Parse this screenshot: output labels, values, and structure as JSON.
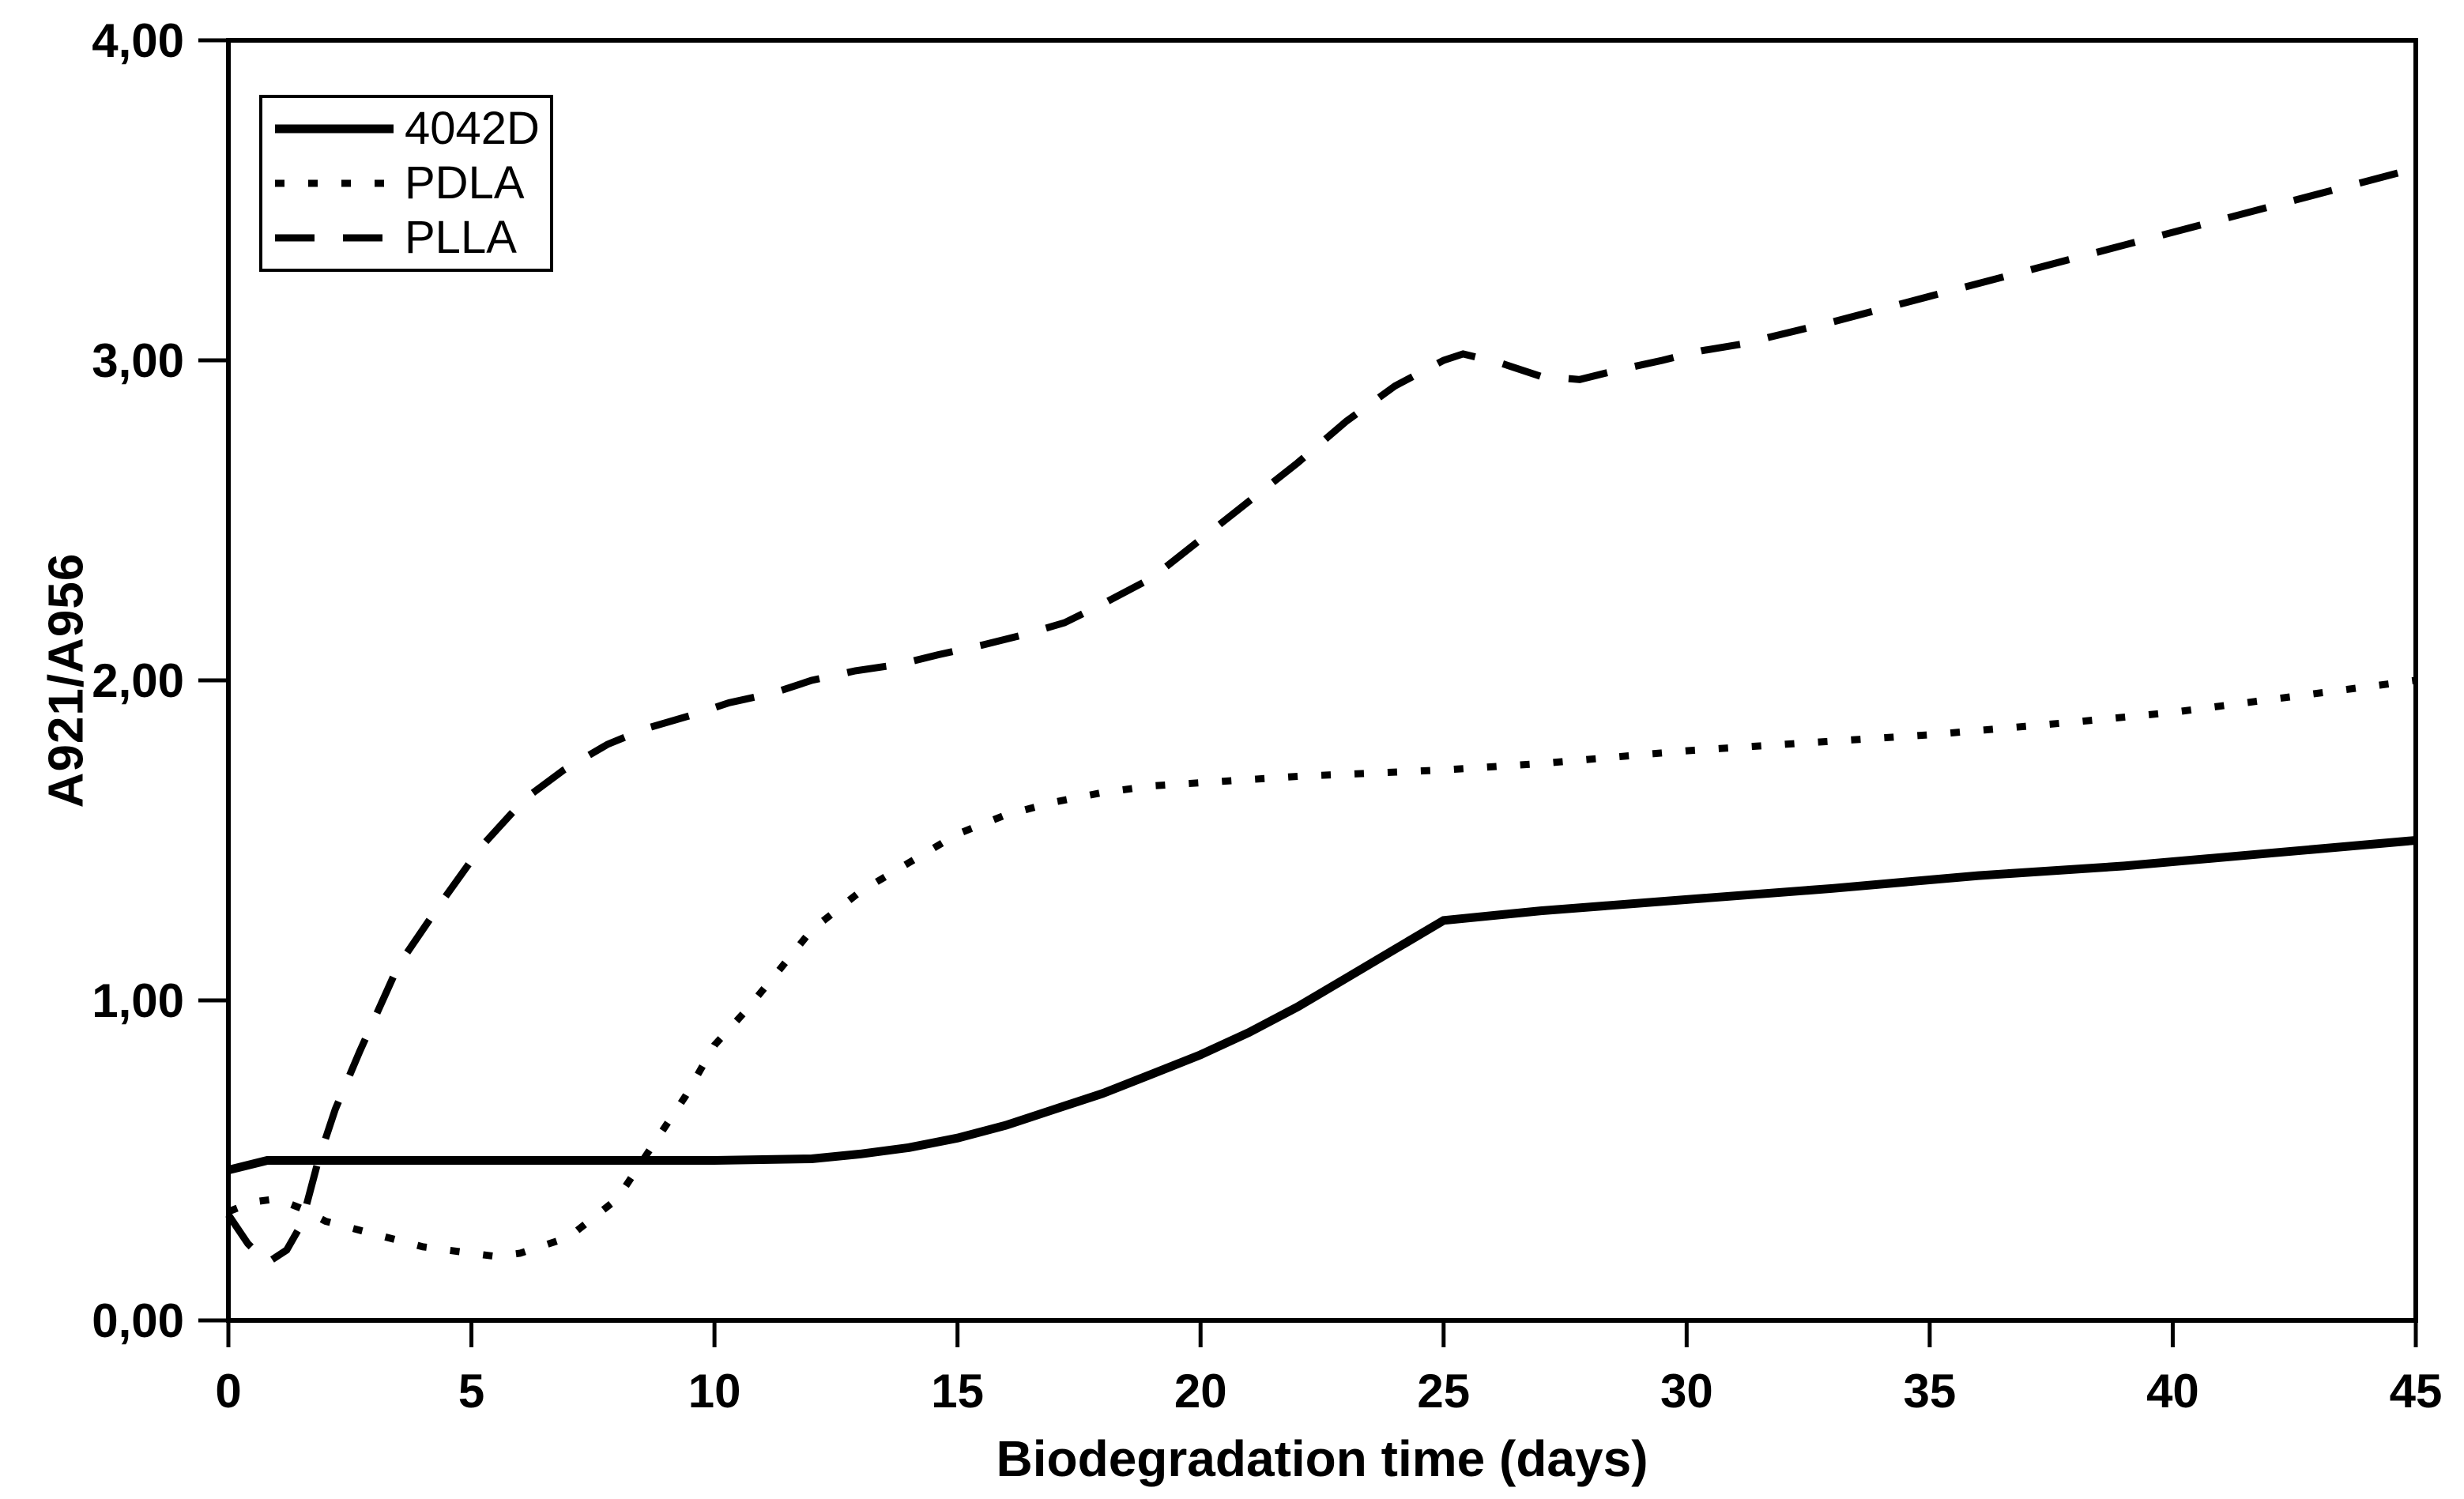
{
  "colors": {
    "stroke": "#000000",
    "background": "#ffffff"
  },
  "legend": {
    "items": [
      {
        "label": "4042D"
      },
      {
        "label": "PDLA"
      },
      {
        "label": "PLLA"
      }
    ]
  },
  "chart_data": {
    "type": "line",
    "title": "",
    "xlabel": "Biodegradation time (days)",
    "ylabel": "A921/A956",
    "xlim": [
      0,
      45
    ],
    "ylim": [
      0,
      4
    ],
    "grid": false,
    "legend_position": "top-left",
    "xticks": [
      {
        "v": 0,
        "label": "0"
      },
      {
        "v": 5,
        "label": "5"
      },
      {
        "v": 10,
        "label": "10"
      },
      {
        "v": 15,
        "label": "15"
      },
      {
        "v": 20,
        "label": "20"
      },
      {
        "v": 25,
        "label": "25"
      },
      {
        "v": 30,
        "label": "30"
      },
      {
        "v": 35,
        "label": "35"
      },
      {
        "v": 40,
        "label": "40"
      },
      {
        "v": 45,
        "label": "45"
      }
    ],
    "yticks": [
      {
        "v": 0,
        "label": "0,00"
      },
      {
        "v": 1,
        "label": "1,00"
      },
      {
        "v": 2,
        "label": "2,00"
      },
      {
        "v": 3,
        "label": "3,00"
      },
      {
        "v": 4,
        "label": "4,00"
      }
    ],
    "series": [
      {
        "name": "4042D",
        "style": "solid",
        "dash": "",
        "stroke_width": 11,
        "points": [
          [
            0,
            0.47
          ],
          [
            0.8,
            0.5
          ],
          [
            2,
            0.5
          ],
          [
            4,
            0.5
          ],
          [
            6,
            0.5
          ],
          [
            8,
            0.5
          ],
          [
            10,
            0.5
          ],
          [
            12,
            0.505
          ],
          [
            13,
            0.52
          ],
          [
            14,
            0.54
          ],
          [
            15,
            0.57
          ],
          [
            16,
            0.61
          ],
          [
            17,
            0.66
          ],
          [
            18,
            0.71
          ],
          [
            19,
            0.77
          ],
          [
            20,
            0.83
          ],
          [
            21,
            0.9
          ],
          [
            22,
            0.98
          ],
          [
            23,
            1.07
          ],
          [
            24,
            1.16
          ],
          [
            25,
            1.25
          ],
          [
            27,
            1.28
          ],
          [
            30,
            1.315
          ],
          [
            33,
            1.35
          ],
          [
            36,
            1.39
          ],
          [
            39,
            1.42
          ],
          [
            42,
            1.46
          ],
          [
            45,
            1.5
          ]
        ]
      },
      {
        "name": "PDLA",
        "style": "dotted",
        "dash": "12 30",
        "stroke_width": 9,
        "points": [
          [
            0,
            0.34
          ],
          [
            0.5,
            0.37
          ],
          [
            1,
            0.38
          ],
          [
            1.5,
            0.35
          ],
          [
            2,
            0.31
          ],
          [
            3,
            0.27
          ],
          [
            4,
            0.23
          ],
          [
            5,
            0.21
          ],
          [
            5.5,
            0.2
          ],
          [
            6,
            0.21
          ],
          [
            7,
            0.26
          ],
          [
            8,
            0.38
          ],
          [
            8.7,
            0.54
          ],
          [
            9.4,
            0.7
          ],
          [
            10,
            0.86
          ],
          [
            10.6,
            0.96
          ],
          [
            11.2,
            1.07
          ],
          [
            12,
            1.22
          ],
          [
            13,
            1.34
          ],
          [
            14,
            1.43
          ],
          [
            15,
            1.52
          ],
          [
            16,
            1.58
          ],
          [
            17,
            1.62
          ],
          [
            18,
            1.65
          ],
          [
            19,
            1.67
          ],
          [
            20,
            1.68
          ],
          [
            22,
            1.7
          ],
          [
            25,
            1.72
          ],
          [
            27,
            1.74
          ],
          [
            30,
            1.78
          ],
          [
            33,
            1.81
          ],
          [
            35,
            1.83
          ],
          [
            38,
            1.87
          ],
          [
            40,
            1.9
          ],
          [
            42,
            1.94
          ],
          [
            45,
            2.0
          ]
        ]
      },
      {
        "name": "PLLA",
        "style": "dashed",
        "dash": "50 36",
        "stroke_width": 9,
        "points": [
          [
            0,
            0.33
          ],
          [
            0.4,
            0.24
          ],
          [
            0.8,
            0.18
          ],
          [
            1.2,
            0.22
          ],
          [
            1.5,
            0.3
          ],
          [
            1.85,
            0.5
          ],
          [
            2.2,
            0.66
          ],
          [
            2.7,
            0.84
          ],
          [
            3.5,
            1.11
          ],
          [
            4.4,
            1.31
          ],
          [
            5.2,
            1.48
          ],
          [
            6.1,
            1.63
          ],
          [
            6.9,
            1.72
          ],
          [
            7.8,
            1.8
          ],
          [
            8.6,
            1.85
          ],
          [
            9.5,
            1.89
          ],
          [
            10.3,
            1.93
          ],
          [
            11.2,
            1.96
          ],
          [
            12,
            2.0
          ],
          [
            12.9,
            2.03
          ],
          [
            13.8,
            2.05
          ],
          [
            14.6,
            2.08
          ],
          [
            15.5,
            2.11
          ],
          [
            16.3,
            2.14
          ],
          [
            17.2,
            2.18
          ],
          [
            18,
            2.24
          ],
          [
            19,
            2.32
          ],
          [
            20,
            2.44
          ],
          [
            21,
            2.56
          ],
          [
            22,
            2.68
          ],
          [
            23,
            2.81
          ],
          [
            24,
            2.92
          ],
          [
            25,
            3.0
          ],
          [
            25.4,
            3.02
          ],
          [
            26.2,
            2.99
          ],
          [
            27,
            2.95
          ],
          [
            27.8,
            2.94
          ],
          [
            28.6,
            2.97
          ],
          [
            29.5,
            3.0
          ],
          [
            30.3,
            3.03
          ],
          [
            31.1,
            3.05
          ],
          [
            33,
            3.12
          ],
          [
            35,
            3.2
          ],
          [
            37,
            3.28
          ],
          [
            39,
            3.36
          ],
          [
            41,
            3.44
          ],
          [
            43,
            3.52
          ],
          [
            45,
            3.6
          ]
        ]
      }
    ]
  }
}
